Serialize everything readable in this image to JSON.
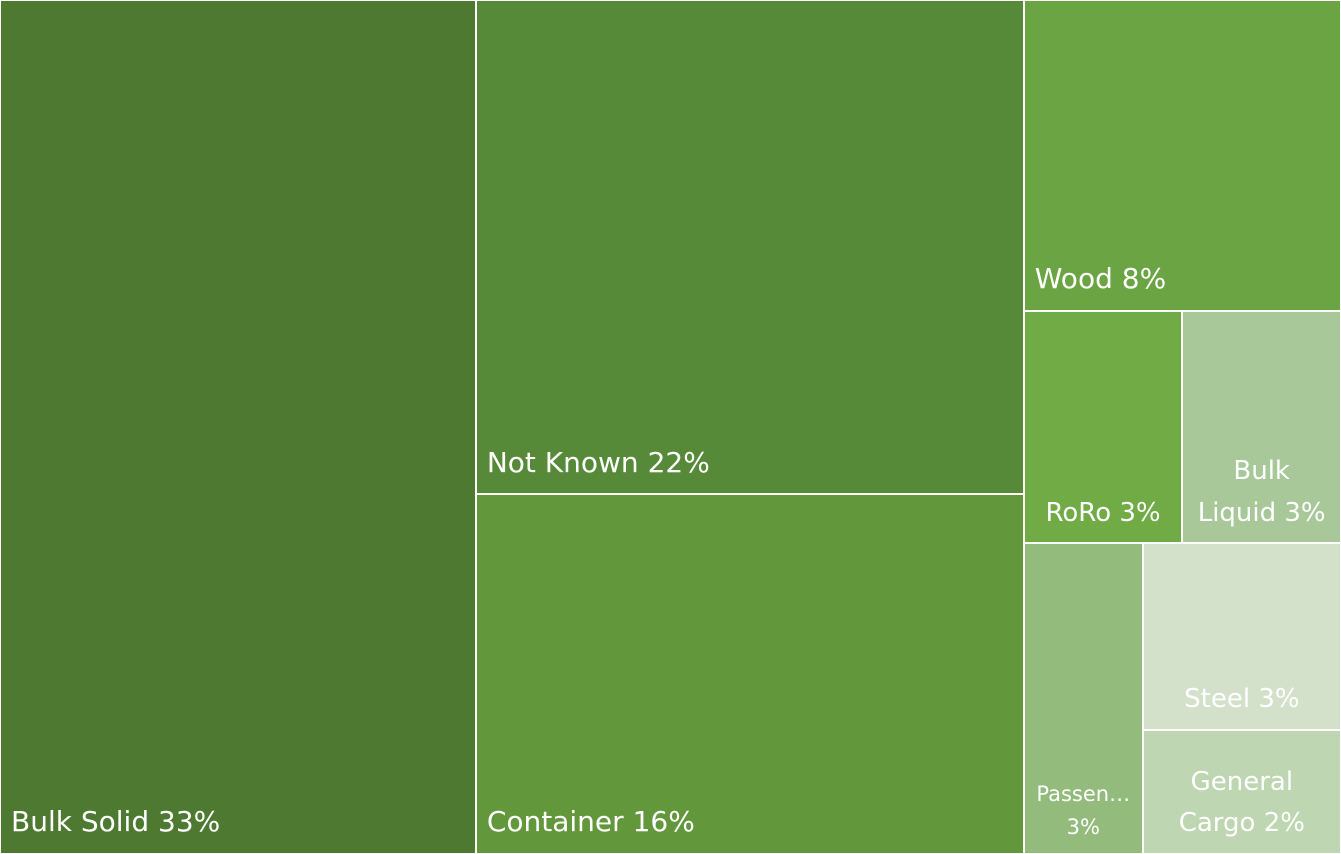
{
  "chart_data": {
    "type": "treemap",
    "categories": [
      "Bulk Solid",
      "Not Known",
      "Container",
      "Wood",
      "RoRo",
      "Bulk Liquid",
      "Passen…",
      "Steel",
      "General Cargo"
    ],
    "values": [
      33,
      22,
      16,
      8,
      3,
      3,
      3,
      3,
      2
    ],
    "value_labels": [
      "33%",
      "22%",
      "16%",
      "8%",
      "3%",
      "3%",
      "3%",
      "3%",
      "2%"
    ],
    "colors": [
      "#4d7a30",
      "#578a38",
      "#62973c",
      "#6aa443",
      "#70ab45",
      "#a8c89a",
      "#93bb7c",
      "#d3e1cb",
      "#bfd6b2"
    ]
  }
}
